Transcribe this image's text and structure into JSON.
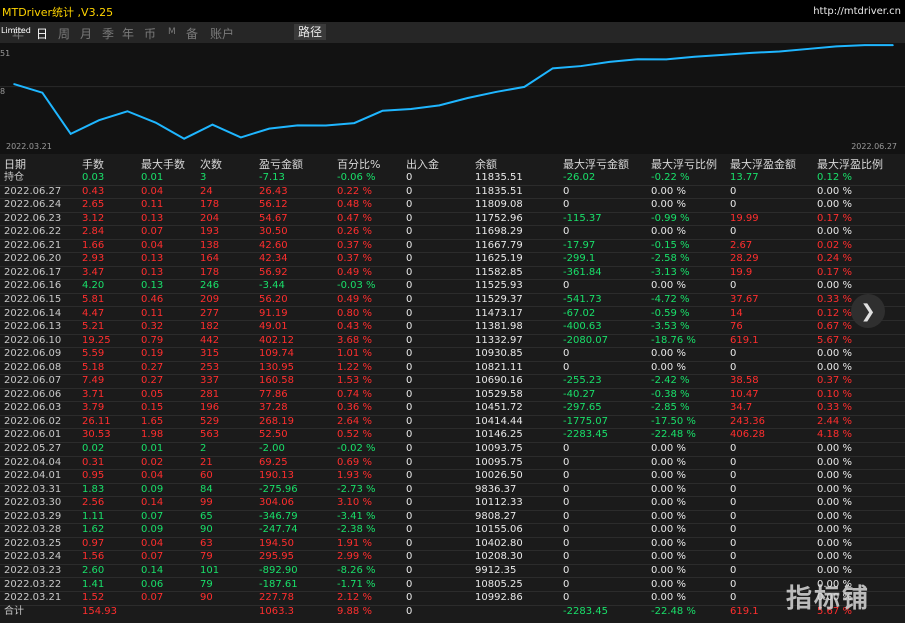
{
  "app": {
    "title": "MTDriver统计 ,V3.25",
    "url": "http://mtdriver.cn"
  },
  "nav": {
    "items": [
      "年",
      "日",
      "周",
      "月",
      "季",
      "年",
      "币",
      "M",
      "备",
      "账户"
    ],
    "active_index": 1,
    "path_label": "路径"
  },
  "limited_label": "Limited",
  "chart": {
    "y_labels": [
      "51",
      "8"
    ],
    "x_start": "2022.03.21",
    "x_end": "2022.06.27",
    "line_color": "#1fb6ff"
  },
  "chart_data": {
    "type": "line",
    "x": [
      "2022.03.21",
      "2022.03.22",
      "2022.03.23",
      "2022.03.24",
      "2022.03.25",
      "2022.03.28",
      "2022.03.29",
      "2022.03.30",
      "2022.03.31",
      "2022.04.01",
      "2022.04.04",
      "2022.04.05",
      "2022.05.27",
      "2022.06.01",
      "2022.06.02",
      "2022.06.03",
      "2022.06.06",
      "2022.06.07",
      "2022.06.08",
      "2022.06.09",
      "2022.06.10",
      "2022.06.13",
      "2022.06.14",
      "2022.06.15",
      "2022.06.16",
      "2022.06.17",
      "2022.06.20",
      "2022.06.21",
      "2022.06.22",
      "2022.06.23",
      "2022.06.24",
      "2022.06.27"
    ],
    "y": [
      10992.86,
      10805.25,
      9912.35,
      10208.3,
      10402.8,
      10155.06,
      9808.27,
      10112.33,
      9836.37,
      10026.5,
      10095.75,
      10093.75,
      10146.25,
      10414.44,
      10451.72,
      10529.58,
      10690.16,
      10821.11,
      10930.85,
      11332.97,
      11381.98,
      11473.17,
      11529.37,
      11525.93,
      11582.85,
      11625.19,
      11667.79,
      11698.29,
      11752.96,
      11809.08,
      11835.51,
      11835.51
    ],
    "xlabel": "",
    "ylabel": ""
  },
  "table": {
    "headers": [
      "日期",
      "手数",
      "最大手数",
      "次数",
      "盈亏金额",
      "百分比%",
      "出入金",
      "余额",
      "最大浮亏金额",
      "最大浮亏比例",
      "最大浮盈金额",
      "最大浮盈比例"
    ],
    "rows": [
      {
        "date": "持仓",
        "lots": "0.03",
        "maxlots": "0.01",
        "count": "3",
        "pnl": "-7.13",
        "pct": "-0.06 %",
        "io": "0",
        "bal": "11835.51",
        "mfl": "-26.02",
        "mflp": "-0.22 %",
        "mfp": "13.77",
        "mfpp": "0.12 %",
        "s": "n",
        "ls": "n",
        "fs": "n"
      },
      {
        "date": "2022.06.27",
        "lots": "0.43",
        "maxlots": "0.04",
        "count": "24",
        "pnl": "26.43",
        "pct": "0.22 %",
        "io": "0",
        "bal": "11835.51",
        "mfl": "0",
        "mflp": "0.00 %",
        "mfp": "0",
        "mfpp": "0.00 %",
        "s": "p",
        "ls": "z",
        "fs": "z"
      },
      {
        "date": "2022.06.24",
        "lots": "2.65",
        "maxlots": "0.11",
        "count": "178",
        "pnl": "56.12",
        "pct": "0.48 %",
        "io": "0",
        "bal": "11809.08",
        "mfl": "0",
        "mflp": "0.00 %",
        "mfp": "0",
        "mfpp": "0.00 %",
        "s": "p",
        "ls": "z",
        "fs": "z"
      },
      {
        "date": "2022.06.23",
        "lots": "3.12",
        "maxlots": "0.13",
        "count": "204",
        "pnl": "54.67",
        "pct": "0.47 %",
        "io": "0",
        "bal": "11752.96",
        "mfl": "-115.37",
        "mflp": "-0.99 %",
        "mfp": "19.99",
        "mfpp": "0.17 %",
        "s": "p",
        "ls": "n",
        "fs": "p"
      },
      {
        "date": "2022.06.22",
        "lots": "2.84",
        "maxlots": "0.07",
        "count": "193",
        "pnl": "30.50",
        "pct": "0.26 %",
        "io": "0",
        "bal": "11698.29",
        "mfl": "0",
        "mflp": "0.00 %",
        "mfp": "0",
        "mfpp": "0.00 %",
        "s": "p",
        "ls": "z",
        "fs": "z"
      },
      {
        "date": "2022.06.21",
        "lots": "1.66",
        "maxlots": "0.04",
        "count": "138",
        "pnl": "42.60",
        "pct": "0.37 %",
        "io": "0",
        "bal": "11667.79",
        "mfl": "-17.97",
        "mflp": "-0.15 %",
        "mfp": "2.67",
        "mfpp": "0.02 %",
        "s": "p",
        "ls": "n",
        "fs": "p"
      },
      {
        "date": "2022.06.20",
        "lots": "2.93",
        "maxlots": "0.13",
        "count": "164",
        "pnl": "42.34",
        "pct": "0.37 %",
        "io": "0",
        "bal": "11625.19",
        "mfl": "-299.1",
        "mflp": "-2.58 %",
        "mfp": "28.29",
        "mfpp": "0.24 %",
        "s": "p",
        "ls": "n",
        "fs": "p"
      },
      {
        "date": "2022.06.17",
        "lots": "3.47",
        "maxlots": "0.13",
        "count": "178",
        "pnl": "56.92",
        "pct": "0.49 %",
        "io": "0",
        "bal": "11582.85",
        "mfl": "-361.84",
        "mflp": "-3.13 %",
        "mfp": "19.9",
        "mfpp": "0.17 %",
        "s": "p",
        "ls": "n",
        "fs": "p"
      },
      {
        "date": "2022.06.16",
        "lots": "4.20",
        "maxlots": "0.13",
        "count": "246",
        "pnl": "-3.44",
        "pct": "-0.03 %",
        "io": "0",
        "bal": "11525.93",
        "mfl": "0",
        "mflp": "0.00 %",
        "mfp": "0",
        "mfpp": "0.00 %",
        "s": "n",
        "ls": "z",
        "fs": "z"
      },
      {
        "date": "2022.06.15",
        "lots": "5.81",
        "maxlots": "0.46",
        "count": "209",
        "pnl": "56.20",
        "pct": "0.49 %",
        "io": "0",
        "bal": "11529.37",
        "mfl": "-541.73",
        "mflp": "-4.72 %",
        "mfp": "37.67",
        "mfpp": "0.33 %",
        "s": "p",
        "ls": "n",
        "fs": "p"
      },
      {
        "date": "2022.06.14",
        "lots": "4.47",
        "maxlots": "0.11",
        "count": "277",
        "pnl": "91.19",
        "pct": "0.80 %",
        "io": "0",
        "bal": "11473.17",
        "mfl": "-67.02",
        "mflp": "-0.59 %",
        "mfp": "14",
        "mfpp": "0.12 %",
        "s": "p",
        "ls": "n",
        "fs": "p"
      },
      {
        "date": "2022.06.13",
        "lots": "5.21",
        "maxlots": "0.32",
        "count": "182",
        "pnl": "49.01",
        "pct": "0.43 %",
        "io": "0",
        "bal": "11381.98",
        "mfl": "-400.63",
        "mflp": "-3.53 %",
        "mfp": "76",
        "mfpp": "0.67 %",
        "s": "p",
        "ls": "n",
        "fs": "p"
      },
      {
        "date": "2022.06.10",
        "lots": "19.25",
        "maxlots": "0.79",
        "count": "442",
        "pnl": "402.12",
        "pct": "3.68 %",
        "io": "0",
        "bal": "11332.97",
        "mfl": "-2080.07",
        "mflp": "-18.76 %",
        "mfp": "619.1",
        "mfpp": "5.67 %",
        "s": "p",
        "ls": "n",
        "fs": "p"
      },
      {
        "date": "2022.06.09",
        "lots": "5.59",
        "maxlots": "0.19",
        "count": "315",
        "pnl": "109.74",
        "pct": "1.01 %",
        "io": "0",
        "bal": "10930.85",
        "mfl": "0",
        "mflp": "0.00 %",
        "mfp": "0",
        "mfpp": "0.00 %",
        "s": "p",
        "ls": "z",
        "fs": "z"
      },
      {
        "date": "2022.06.08",
        "lots": "5.18",
        "maxlots": "0.27",
        "count": "253",
        "pnl": "130.95",
        "pct": "1.22 %",
        "io": "0",
        "bal": "10821.11",
        "mfl": "0",
        "mflp": "0.00 %",
        "mfp": "0",
        "mfpp": "0.00 %",
        "s": "p",
        "ls": "z",
        "fs": "z"
      },
      {
        "date": "2022.06.07",
        "lots": "7.49",
        "maxlots": "0.27",
        "count": "337",
        "pnl": "160.58",
        "pct": "1.53 %",
        "io": "0",
        "bal": "10690.16",
        "mfl": "-255.23",
        "mflp": "-2.42 %",
        "mfp": "38.58",
        "mfpp": "0.37 %",
        "s": "p",
        "ls": "n",
        "fs": "p"
      },
      {
        "date": "2022.06.06",
        "lots": "3.71",
        "maxlots": "0.05",
        "count": "281",
        "pnl": "77.86",
        "pct": "0.74 %",
        "io": "0",
        "bal": "10529.58",
        "mfl": "-40.27",
        "mflp": "-0.38 %",
        "mfp": "10.47",
        "mfpp": "0.10 %",
        "s": "p",
        "ls": "n",
        "fs": "p"
      },
      {
        "date": "2022.06.03",
        "lots": "3.79",
        "maxlots": "0.15",
        "count": "196",
        "pnl": "37.28",
        "pct": "0.36 %",
        "io": "0",
        "bal": "10451.72",
        "mfl": "-297.65",
        "mflp": "-2.85 %",
        "mfp": "34.7",
        "mfpp": "0.33 %",
        "s": "p",
        "ls": "n",
        "fs": "p"
      },
      {
        "date": "2022.06.02",
        "lots": "26.11",
        "maxlots": "1.65",
        "count": "529",
        "pnl": "268.19",
        "pct": "2.64 %",
        "io": "0",
        "bal": "10414.44",
        "mfl": "-1775.07",
        "mflp": "-17.50 %",
        "mfp": "243.36",
        "mfpp": "2.44 %",
        "s": "p",
        "ls": "n",
        "fs": "p"
      },
      {
        "date": "2022.06.01",
        "lots": "30.53",
        "maxlots": "1.98",
        "count": "563",
        "pnl": "52.50",
        "pct": "0.52 %",
        "io": "0",
        "bal": "10146.25",
        "mfl": "-2283.45",
        "mflp": "-22.48 %",
        "mfp": "406.28",
        "mfpp": "4.18 %",
        "s": "p",
        "ls": "n",
        "fs": "p"
      },
      {
        "date": "2022.05.27",
        "lots": "0.02",
        "maxlots": "0.01",
        "count": "2",
        "pnl": "-2.00",
        "pct": "-0.02 %",
        "io": "0",
        "bal": "10093.75",
        "mfl": "0",
        "mflp": "0.00 %",
        "mfp": "0",
        "mfpp": "0.00 %",
        "s": "n",
        "ls": "z",
        "fs": "z"
      },
      {
        "date": "2022.04.04",
        "lots": "0.31",
        "maxlots": "0.02",
        "count": "21",
        "pnl": "69.25",
        "pct": "0.69 %",
        "io": "0",
        "bal": "10095.75",
        "mfl": "0",
        "mflp": "0.00 %",
        "mfp": "0",
        "mfpp": "0.00 %",
        "s": "p",
        "ls": "z",
        "fs": "z"
      },
      {
        "date": "2022.04.01",
        "lots": "0.95",
        "maxlots": "0.04",
        "count": "60",
        "pnl": "190.13",
        "pct": "1.93 %",
        "io": "0",
        "bal": "10026.50",
        "mfl": "0",
        "mflp": "0.00 %",
        "mfp": "0",
        "mfpp": "0.00 %",
        "s": "p",
        "ls": "z",
        "fs": "z"
      },
      {
        "date": "2022.03.31",
        "lots": "1.83",
        "maxlots": "0.09",
        "count": "84",
        "pnl": "-275.96",
        "pct": "-2.73 %",
        "io": "0",
        "bal": "9836.37",
        "mfl": "0",
        "mflp": "0.00 %",
        "mfp": "0",
        "mfpp": "0.00 %",
        "s": "n",
        "ls": "z",
        "fs": "z"
      },
      {
        "date": "2022.03.30",
        "lots": "2.56",
        "maxlots": "0.14",
        "count": "99",
        "pnl": "304.06",
        "pct": "3.10 %",
        "io": "0",
        "bal": "10112.33",
        "mfl": "0",
        "mflp": "0.00 %",
        "mfp": "0",
        "mfpp": "0.00 %",
        "s": "p",
        "ls": "z",
        "fs": "z"
      },
      {
        "date": "2022.03.29",
        "lots": "1.11",
        "maxlots": "0.07",
        "count": "65",
        "pnl": "-346.79",
        "pct": "-3.41 %",
        "io": "0",
        "bal": "9808.27",
        "mfl": "0",
        "mflp": "0.00 %",
        "mfp": "0",
        "mfpp": "0.00 %",
        "s": "n",
        "ls": "z",
        "fs": "z"
      },
      {
        "date": "2022.03.28",
        "lots": "1.62",
        "maxlots": "0.09",
        "count": "90",
        "pnl": "-247.74",
        "pct": "-2.38 %",
        "io": "0",
        "bal": "10155.06",
        "mfl": "0",
        "mflp": "0.00 %",
        "mfp": "0",
        "mfpp": "0.00 %",
        "s": "n",
        "ls": "z",
        "fs": "z"
      },
      {
        "date": "2022.03.25",
        "lots": "0.97",
        "maxlots": "0.04",
        "count": "63",
        "pnl": "194.50",
        "pct": "1.91 %",
        "io": "0",
        "bal": "10402.80",
        "mfl": "0",
        "mflp": "0.00 %",
        "mfp": "0",
        "mfpp": "0.00 %",
        "s": "p",
        "ls": "z",
        "fs": "z"
      },
      {
        "date": "2022.03.24",
        "lots": "1.56",
        "maxlots": "0.07",
        "count": "79",
        "pnl": "295.95",
        "pct": "2.99 %",
        "io": "0",
        "bal": "10208.30",
        "mfl": "0",
        "mflp": "0.00 %",
        "mfp": "0",
        "mfpp": "0.00 %",
        "s": "p",
        "ls": "z",
        "fs": "z"
      },
      {
        "date": "2022.03.23",
        "lots": "2.60",
        "maxlots": "0.14",
        "count": "101",
        "pnl": "-892.90",
        "pct": "-8.26 %",
        "io": "0",
        "bal": "9912.35",
        "mfl": "0",
        "mflp": "0.00 %",
        "mfp": "0",
        "mfpp": "0.00 %",
        "s": "n",
        "ls": "z",
        "fs": "z"
      },
      {
        "date": "2022.03.22",
        "lots": "1.41",
        "maxlots": "0.06",
        "count": "79",
        "pnl": "-187.61",
        "pct": "-1.71 %",
        "io": "0",
        "bal": "10805.25",
        "mfl": "0",
        "mflp": "0.00 %",
        "mfp": "0",
        "mfpp": "0.00 %",
        "s": "n",
        "ls": "z",
        "fs": "z"
      },
      {
        "date": "2022.03.21",
        "lots": "1.52",
        "maxlots": "0.07",
        "count": "90",
        "pnl": "227.78",
        "pct": "2.12 %",
        "io": "0",
        "bal": "10992.86",
        "mfl": "0",
        "mflp": "0.00 %",
        "mfp": "0",
        "mfpp": "0.00 %",
        "s": "p",
        "ls": "z",
        "fs": "z"
      }
    ],
    "total": {
      "date": "合计",
      "lots": "154.93",
      "maxlots": "",
      "count": "",
      "pnl": "1063.3",
      "pct": "9.88 %",
      "io": "0",
      "bal": "",
      "mfl": "-2283.45",
      "mflp": "-22.48 %",
      "mfp": "619.1",
      "mfpp": "5.67 %"
    }
  },
  "next_button_icon": "chevron-right-icon",
  "watermark": "指标铺",
  "colors": {
    "profit": "#ff2e2e",
    "loss": "#19e06a",
    "accent": "#ffd400"
  }
}
